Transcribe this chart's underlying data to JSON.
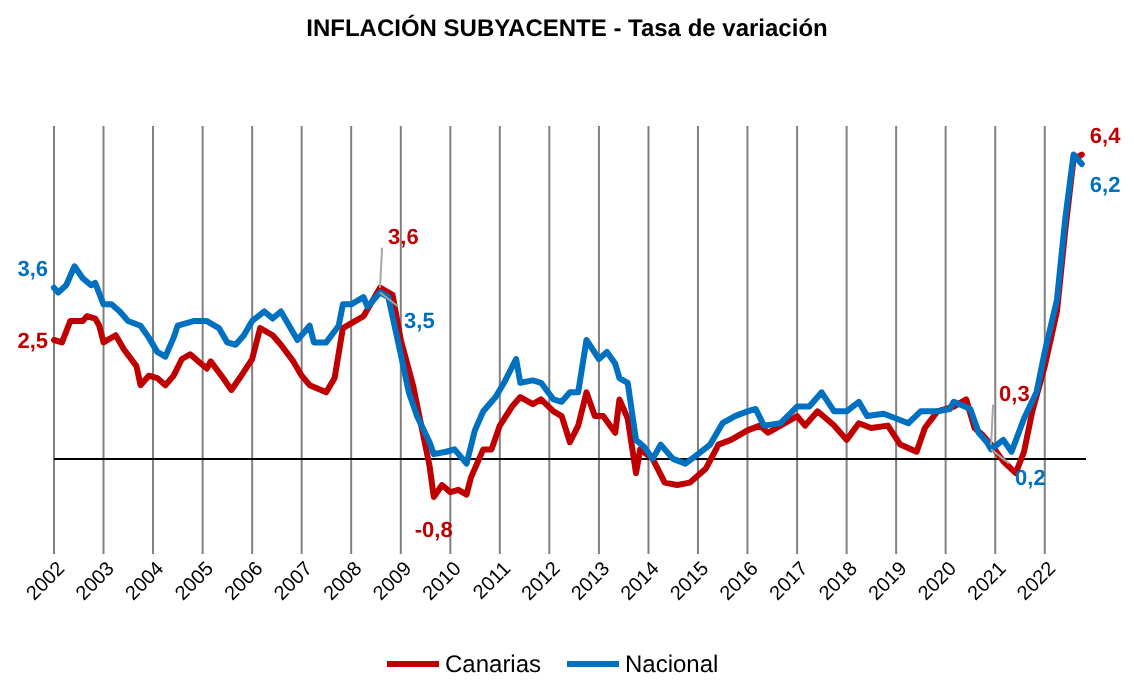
{
  "chart_data": {
    "type": "line",
    "title": "INFLACIÓN SUBYACENTE - Tasa de variación",
    "xlim": [
      "2002-01",
      "2022-11"
    ],
    "ylim": [
      -2,
      7
    ],
    "xticks": [
      "2002",
      "2003",
      "2004",
      "2005",
      "2006",
      "2007",
      "2008",
      "2009",
      "2010",
      "2011",
      "2012",
      "2013",
      "2014",
      "2015",
      "2016",
      "2017",
      "2018",
      "2019",
      "2020",
      "2021",
      "2022"
    ],
    "tick_labels": "x",
    "grid": "x",
    "legend": "bottom",
    "line_style": "solid",
    "marker": "none",
    "series": [
      {
        "name": "Canarias",
        "color": "#c00000",
        "x": [
          "2002-01",
          "2002-03",
          "2002-05",
          "2002-08",
          "2002-09",
          "2002-11",
          "2002-12",
          "2003-01",
          "2003-04",
          "2003-06",
          "2003-09",
          "2003-10",
          "2003-12",
          "2004-02",
          "2004-04",
          "2004-06",
          "2004-08",
          "2004-10",
          "2004-12",
          "2005-02",
          "2005-03",
          "2005-06",
          "2005-08",
          "2005-10",
          "2006-01",
          "2006-03",
          "2006-06",
          "2006-08",
          "2006-11",
          "2007-01",
          "2007-03",
          "2007-07",
          "2007-09",
          "2007-11",
          "2008-02",
          "2008-04",
          "2008-06",
          "2008-08",
          "2008-11",
          "2009-01",
          "2009-04",
          "2009-06",
          "2009-08",
          "2009-09",
          "2009-11",
          "2010-01",
          "2010-03",
          "2010-05",
          "2010-06",
          "2010-09",
          "2010-11",
          "2011-01",
          "2011-04",
          "2011-06",
          "2011-09",
          "2011-11",
          "2012-02",
          "2012-04",
          "2012-06",
          "2012-08",
          "2012-10",
          "2012-12",
          "2013-02",
          "2013-05",
          "2013-06",
          "2013-08",
          "2013-10",
          "2013-11",
          "2014-02",
          "2014-05",
          "2014-08",
          "2014-11",
          "2015-03",
          "2015-06",
          "2015-09",
          "2016-01",
          "2016-04",
          "2016-06",
          "2016-09",
          "2017-01",
          "2017-03",
          "2017-06",
          "2017-10",
          "2018-01",
          "2018-04",
          "2018-07",
          "2018-11",
          "2019-02",
          "2019-06",
          "2019-08",
          "2019-11",
          "2020-03",
          "2020-06",
          "2020-08",
          "2020-10",
          "2020-12",
          "2021-03",
          "2021-06",
          "2021-08",
          "2021-10",
          "2022-01",
          "2022-04",
          "2022-06",
          "2022-08",
          "2022-10"
        ],
        "value_labels": [
          "2,5",
          null,
          null,
          null,
          null,
          null,
          null,
          null,
          null,
          null,
          null,
          null,
          null,
          null,
          null,
          null,
          null,
          null,
          null,
          null,
          null,
          null,
          null,
          null,
          null,
          null,
          null,
          null,
          null,
          null,
          null,
          null,
          null,
          null,
          null,
          null,
          null,
          "3,6",
          null,
          null,
          null,
          null,
          null,
          "-0,8",
          null,
          null,
          null,
          null,
          null,
          null,
          null,
          null,
          null,
          null,
          null,
          null,
          null,
          null,
          null,
          null,
          null,
          null,
          null,
          null,
          null,
          null,
          null,
          null,
          null,
          null,
          null,
          null,
          null,
          null,
          null,
          null,
          null,
          null,
          null,
          null,
          null,
          null,
          null,
          null,
          null,
          null,
          null,
          null,
          null,
          null,
          null,
          null,
          null,
          null,
          null,
          "0,3",
          null,
          null,
          null,
          null,
          null,
          null,
          null,
          null,
          "6,4"
        ],
        "values": [
          2.5,
          2.45,
          2.9,
          2.9,
          3.0,
          2.95,
          2.8,
          2.45,
          2.6,
          2.3,
          1.95,
          1.55,
          1.75,
          1.7,
          1.55,
          1.75,
          2.1,
          2.2,
          2.05,
          1.9,
          2.05,
          1.7,
          1.45,
          1.7,
          2.1,
          2.75,
          2.6,
          2.4,
          2.05,
          1.75,
          1.55,
          1.4,
          1.7,
          2.75,
          2.9,
          3.0,
          3.3,
          3.6,
          3.45,
          2.5,
          1.55,
          0.7,
          -0.15,
          -0.8,
          -0.55,
          -0.7,
          -0.65,
          -0.75,
          -0.4,
          0.2,
          0.2,
          0.7,
          1.1,
          1.3,
          1.15,
          1.25,
          1.0,
          0.9,
          0.35,
          0.7,
          1.4,
          0.9,
          0.9,
          0.55,
          1.25,
          0.85,
          -0.3,
          0.2,
          0.0,
          -0.5,
          -0.55,
          -0.5,
          -0.2,
          0.3,
          0.4,
          0.6,
          0.7,
          0.55,
          0.7,
          0.9,
          0.7,
          1.0,
          0.7,
          0.4,
          0.75,
          0.65,
          0.7,
          0.3,
          0.15,
          0.65,
          1.0,
          1.1,
          1.25,
          0.65,
          0.5,
          0.3,
          -0.05,
          -0.3,
          0.15,
          1.0,
          1.95,
          3.1,
          4.8,
          6.3,
          6.4
        ]
      },
      {
        "name": "Nacional",
        "color": "#0070c0",
        "x": [
          "2002-01",
          "2002-02",
          "2002-04",
          "2002-06",
          "2002-08",
          "2002-10",
          "2002-11",
          "2003-01",
          "2003-03",
          "2003-05",
          "2003-07",
          "2003-10",
          "2003-12",
          "2004-02",
          "2004-04",
          "2004-06",
          "2004-07",
          "2004-11",
          "2005-02",
          "2005-03",
          "2005-05",
          "2005-07",
          "2005-09",
          "2005-11",
          "2006-01",
          "2006-04",
          "2006-06",
          "2006-08",
          "2006-10",
          "2006-12",
          "2007-03",
          "2007-04",
          "2007-07",
          "2007-10",
          "2007-11",
          "2008-01",
          "2008-04",
          "2008-05",
          "2008-08",
          "2008-10",
          "2009-01",
          "2009-03",
          "2009-05",
          "2009-08",
          "2009-09",
          "2009-12",
          "2010-02",
          "2010-05",
          "2010-07",
          "2010-09",
          "2010-12",
          "2011-02",
          "2011-05",
          "2011-06",
          "2011-09",
          "2011-11",
          "2012-02",
          "2012-04",
          "2012-06",
          "2012-08",
          "2012-10",
          "2013-01",
          "2013-03",
          "2013-05",
          "2013-06",
          "2013-08",
          "2013-10",
          "2013-12",
          "2014-02",
          "2014-04",
          "2014-07",
          "2014-10",
          "2015-01",
          "2015-04",
          "2015-07",
          "2015-10",
          "2016-01",
          "2016-03",
          "2016-05",
          "2016-09",
          "2017-01",
          "2017-04",
          "2017-07",
          "2017-10",
          "2018-01",
          "2018-04",
          "2018-06",
          "2018-10",
          "2019-01",
          "2019-04",
          "2019-07",
          "2019-11",
          "2020-02",
          "2020-03",
          "2020-07",
          "2020-09",
          "2020-11",
          "2020-12",
          "2021-03",
          "2021-05",
          "2021-08",
          "2021-11",
          "2022-01",
          "2022-04",
          "2022-06",
          "2022-08",
          "2022-10"
        ],
        "value_labels": [
          "3,6",
          null,
          null,
          null,
          null,
          null,
          null,
          null,
          null,
          null,
          null,
          null,
          null,
          null,
          null,
          null,
          null,
          null,
          null,
          null,
          null,
          null,
          null,
          null,
          null,
          null,
          null,
          null,
          null,
          null,
          null,
          null,
          null,
          null,
          null,
          null,
          null,
          null,
          "3,5",
          null,
          null,
          null,
          null,
          null,
          null,
          null,
          null,
          null,
          null,
          null,
          null,
          null,
          null,
          null,
          null,
          null,
          null,
          null,
          null,
          null,
          null,
          null,
          null,
          null,
          null,
          null,
          null,
          null,
          null,
          null,
          null,
          null,
          null,
          null,
          null,
          null,
          null,
          null,
          null,
          null,
          null,
          null,
          null,
          null,
          null,
          null,
          null,
          null,
          null,
          null,
          null,
          null,
          null,
          null,
          null,
          null,
          null,
          "0,2",
          null,
          null,
          null,
          null,
          null,
          null,
          null,
          null,
          "6,2"
        ],
        "values": [
          3.6,
          3.5,
          3.65,
          4.05,
          3.8,
          3.65,
          3.7,
          3.25,
          3.25,
          3.1,
          2.9,
          2.8,
          2.55,
          2.25,
          2.15,
          2.55,
          2.8,
          2.9,
          2.9,
          2.85,
          2.75,
          2.45,
          2.4,
          2.6,
          2.9,
          3.1,
          2.95,
          3.1,
          2.8,
          2.5,
          2.8,
          2.45,
          2.45,
          2.8,
          3.25,
          3.25,
          3.4,
          3.2,
          3.5,
          3.4,
          2.2,
          1.4,
          0.9,
          0.35,
          0.1,
          0.15,
          0.2,
          -0.1,
          0.6,
          1.0,
          1.3,
          1.6,
          2.1,
          1.6,
          1.65,
          1.6,
          1.25,
          1.2,
          1.4,
          1.4,
          2.5,
          2.1,
          2.25,
          2.0,
          1.7,
          1.6,
          0.4,
          0.25,
          0.0,
          0.3,
          0.0,
          -0.1,
          0.1,
          0.3,
          0.75,
          0.9,
          1.0,
          1.05,
          0.7,
          0.75,
          1.1,
          1.1,
          1.4,
          1.0,
          1.0,
          1.2,
          0.9,
          0.95,
          0.85,
          0.75,
          1.0,
          1.0,
          1.05,
          1.2,
          1.05,
          0.55,
          0.35,
          0.2,
          0.4,
          0.15,
          0.85,
          1.4,
          2.25,
          3.35,
          5.05,
          6.4,
          6.2
        ]
      }
    ]
  }
}
